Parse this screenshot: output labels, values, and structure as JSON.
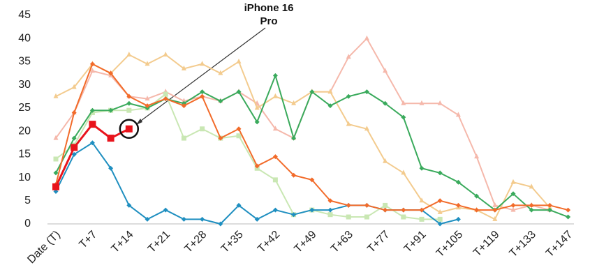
{
  "chart_data": {
    "type": "line",
    "annotation": "iPhone 16 Pro",
    "categories": [
      "Date (T)",
      null,
      "T+7",
      null,
      "T+14",
      null,
      "T+21",
      null,
      "T+28",
      null,
      "T+35",
      null,
      "T+42",
      null,
      "T+49",
      null,
      "T+63",
      null,
      "T+77",
      null,
      "T+91",
      null,
      "T+105",
      null,
      "T+119",
      null,
      "T+133",
      null,
      "T+147"
    ],
    "ylim": [
      0,
      45
    ],
    "yticks": [
      0,
      5,
      10,
      15,
      20,
      25,
      30,
      35,
      40,
      45
    ],
    "highlight_index": 4,
    "series": [
      {
        "color": "#f5b8ab",
        "marker": "triangle",
        "values": [
          18.5,
          24,
          33,
          32,
          27.5,
          27,
          28.5,
          26.5,
          27.5,
          26.5,
          28.5,
          26,
          20.5,
          18.5,
          28.5,
          28.5,
          36,
          40,
          33,
          26,
          26,
          26,
          23.5,
          14.5,
          4,
          3,
          4,
          3,
          null
        ]
      },
      {
        "color": "#f3cb8e",
        "marker": "triangle",
        "values": [
          27.5,
          29.5,
          34.5,
          32.5,
          36.5,
          34.5,
          36.5,
          33.5,
          34.5,
          32.5,
          35,
          25,
          27.5,
          26,
          28.5,
          28.5,
          21.5,
          20.5,
          13.5,
          11,
          5,
          2.5,
          3.5,
          3,
          1,
          9,
          8,
          3.5,
          null
        ]
      },
      {
        "color": "#c9e7b3",
        "marker": "square",
        "values": [
          14,
          17,
          24,
          24.5,
          24.5,
          25,
          28,
          18.5,
          20.5,
          18.5,
          19,
          12,
          9.5,
          2,
          3,
          2,
          1.5,
          1.5,
          4,
          1.5,
          1,
          1,
          null,
          null,
          null,
          null,
          null,
          null,
          null
        ]
      },
      {
        "color": "#1f8fc0",
        "marker": "diamond",
        "values": [
          7,
          15,
          17.5,
          12,
          4,
          1,
          3,
          1,
          1,
          0,
          4,
          1,
          3,
          2,
          3,
          3,
          4,
          4,
          3,
          3,
          3,
          0,
          1,
          null,
          null,
          null,
          null,
          null,
          null
        ]
      },
      {
        "color": "#3aaa5c",
        "marker": "diamond",
        "values": [
          11,
          18.5,
          24.5,
          24.5,
          26,
          25,
          27,
          26,
          28.5,
          26.5,
          28.5,
          22,
          32,
          18.5,
          28.5,
          25.5,
          27.5,
          28.5,
          26,
          23,
          12,
          11,
          9,
          6,
          3,
          6.5,
          3,
          3,
          1.5
        ]
      },
      {
        "color": "#f26b2a",
        "marker": "diamond",
        "values": [
          8.5,
          24,
          34.5,
          32.5,
          27.5,
          25.5,
          27,
          25.5,
          27.5,
          18.5,
          20.5,
          12.5,
          14.5,
          10.5,
          9.5,
          5,
          4,
          4,
          3,
          3,
          3,
          5,
          4,
          3,
          3,
          4,
          4,
          4,
          3
        ]
      },
      {
        "color": "#e8141c",
        "marker": "square",
        "width": 3,
        "values": [
          8,
          16.5,
          21.5,
          18.5,
          20.5,
          null,
          null,
          null,
          null,
          null,
          null,
          null,
          null,
          null,
          null,
          null,
          null,
          null,
          null,
          null,
          null,
          null,
          null,
          null,
          null,
          null,
          null,
          null,
          null
        ]
      }
    ]
  }
}
